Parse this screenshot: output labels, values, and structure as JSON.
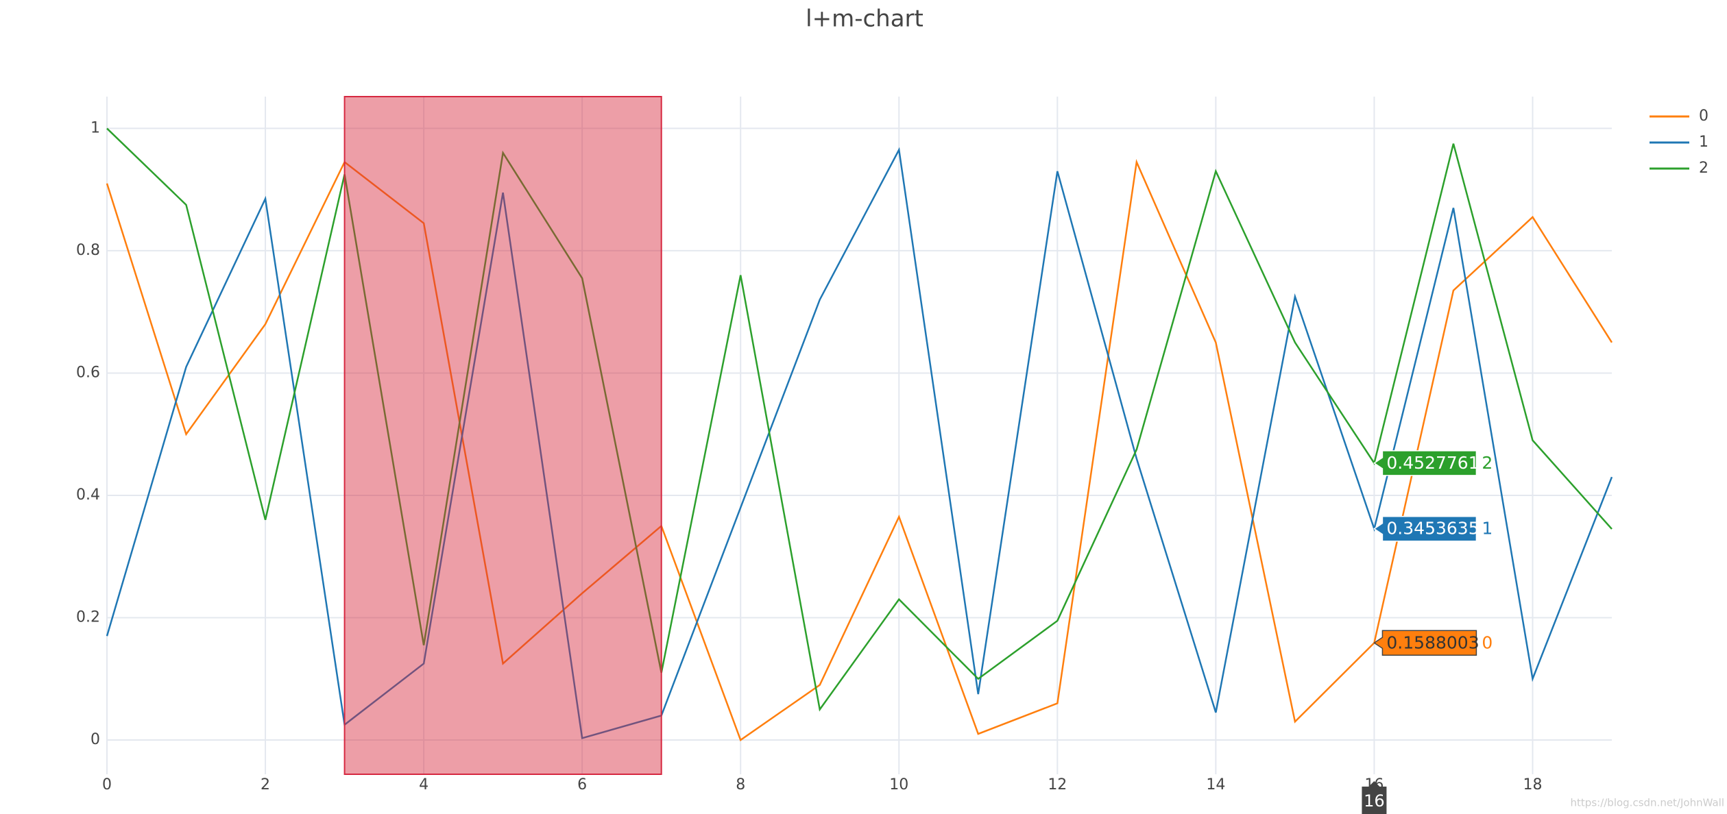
{
  "chart_data": {
    "type": "line",
    "title": "l+m-chart",
    "x": [
      0,
      1,
      2,
      3,
      4,
      5,
      6,
      7,
      8,
      9,
      10,
      11,
      12,
      13,
      14,
      15,
      16,
      17,
      18,
      19
    ],
    "series": [
      {
        "name": "0",
        "color": "#ff7f0e",
        "values": [
          0.91,
          0.5,
          0.68,
          0.945,
          0.845,
          0.125,
          0.24,
          0.35,
          0.0,
          0.09,
          0.365,
          0.01,
          0.06,
          0.945,
          0.65,
          0.03,
          0.1588003,
          0.735,
          0.855,
          0.65
        ]
      },
      {
        "name": "1",
        "color": "#1f77b4",
        "values": [
          0.17,
          0.61,
          0.885,
          0.025,
          0.125,
          0.895,
          0.003,
          0.04,
          0.38,
          0.72,
          0.965,
          0.075,
          0.93,
          0.46,
          0.045,
          0.725,
          0.3453635,
          0.87,
          0.1,
          0.43
        ]
      },
      {
        "name": "2",
        "color": "#2ca02c",
        "values": [
          1.0,
          0.875,
          0.36,
          0.925,
          0.155,
          0.96,
          0.755,
          0.11,
          0.76,
          0.05,
          0.23,
          0.1,
          0.195,
          0.475,
          0.93,
          0.65,
          0.4527761,
          0.975,
          0.49,
          0.345
        ]
      }
    ],
    "xlim": [
      0,
      19
    ],
    "xticks": [
      0,
      2,
      4,
      6,
      8,
      10,
      12,
      14,
      16,
      18
    ],
    "ylim": [
      -0.056,
      1.052
    ],
    "yticks": [
      0,
      0.2,
      0.4,
      0.6,
      0.8,
      1
    ],
    "grid": true,
    "legend": "top-right",
    "shapes": [
      {
        "type": "rect",
        "x0": 3,
        "x1": 7,
        "y0": -0.056,
        "y1": 1.052,
        "fillcolor": "rgba(214,39,60,0.45)",
        "line_color": "#d62740"
      }
    ],
    "hover_x": 16,
    "watermark": "https://blog.csdn.net/JohnWall"
  }
}
